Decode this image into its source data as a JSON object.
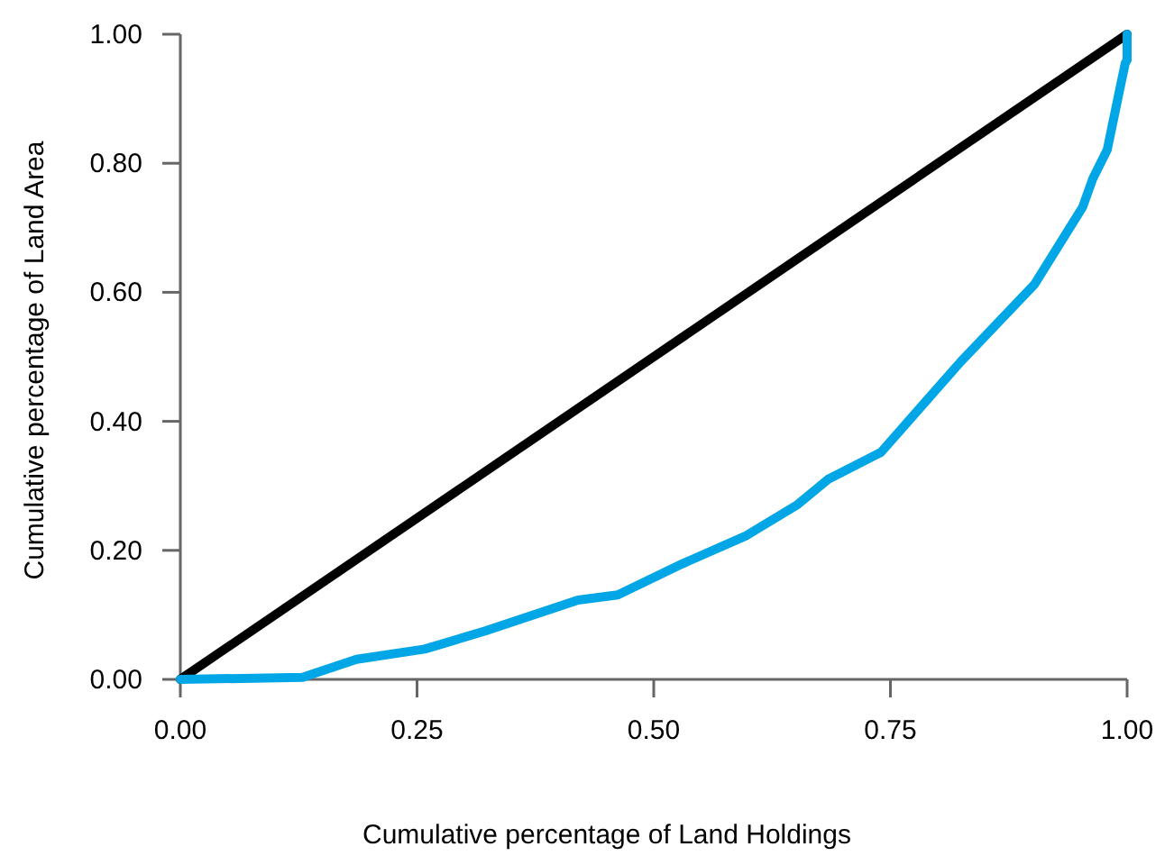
{
  "chart_data": {
    "type": "line",
    "xlabel": "Cumulative percentage of Land Holdings",
    "ylabel": "Cumulative percentage of Land Area",
    "xlim": [
      0,
      1
    ],
    "ylim": [
      0,
      1
    ],
    "xticks": [
      {
        "value": 0,
        "label": "0.00"
      },
      {
        "value": 0.25,
        "label": "0.25"
      },
      {
        "value": 0.5,
        "label": "0.50"
      },
      {
        "value": 0.75,
        "label": "0.75"
      },
      {
        "value": 1,
        "label": "1.00"
      }
    ],
    "yticks": [
      {
        "value": 0,
        "label": "0.00"
      },
      {
        "value": 0.2,
        "label": "0.20"
      },
      {
        "value": 0.4,
        "label": "0.40"
      },
      {
        "value": 0.6,
        "label": "0.60"
      },
      {
        "value": 0.8,
        "label": "0.80"
      },
      {
        "value": 1,
        "label": "1.00"
      }
    ],
    "grid": false,
    "marker": "none",
    "line_style": "solid",
    "series": [
      {
        "color": "#000000",
        "x": [
          0,
          1
        ],
        "values": [
          0,
          1
        ]
      },
      {
        "color": "#00a6e6",
        "x": [
          0,
          0.129,
          0.186,
          0.258,
          0.322,
          0.42,
          0.462,
          0.53,
          0.598,
          0.652,
          0.684,
          0.74,
          0.824,
          0.902,
          0.953,
          0.964,
          0.979,
          0.992,
          0.998,
          1.0,
          1.0
        ],
        "values": [
          0,
          0.003,
          0.031,
          0.047,
          0.075,
          0.123,
          0.131,
          0.179,
          0.223,
          0.271,
          0.31,
          0.352,
          0.492,
          0.612,
          0.732,
          0.777,
          0.821,
          0.913,
          0.955,
          0.96,
          1.0
        ]
      }
    ]
  }
}
